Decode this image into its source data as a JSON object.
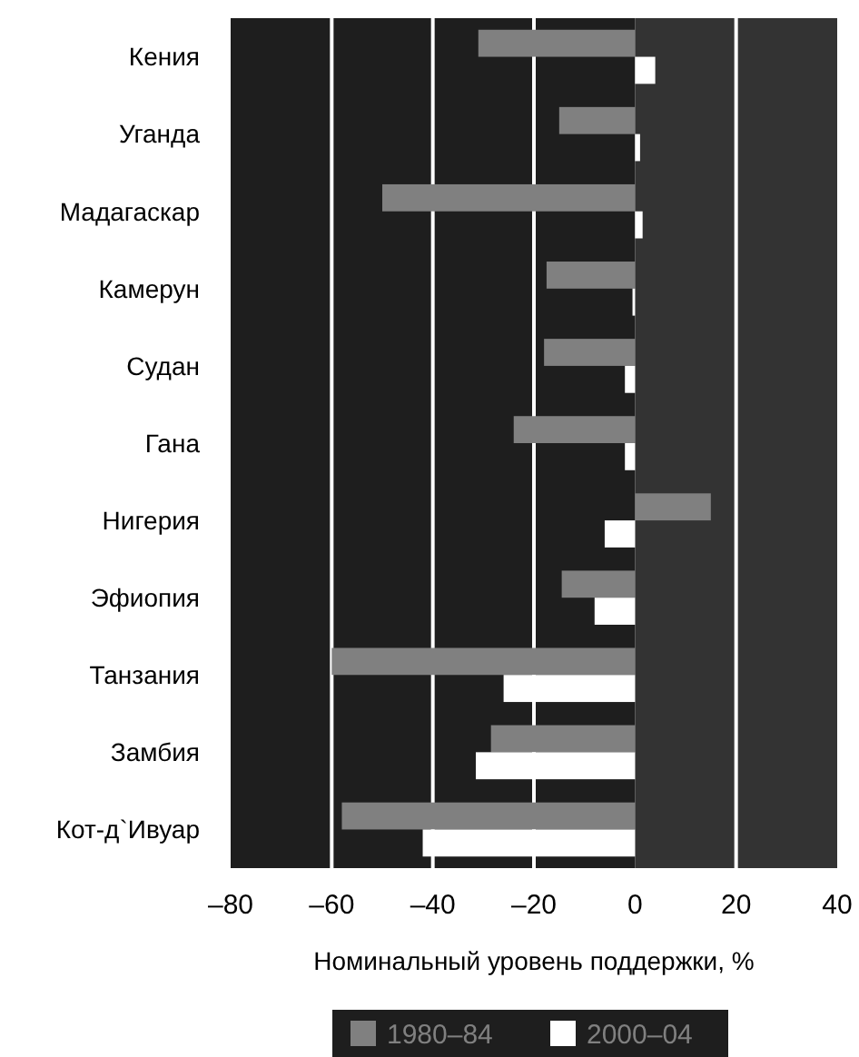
{
  "chart_data": {
    "type": "bar",
    "orientation": "horizontal",
    "xlabel": "Номинальный уровень поддержки, %",
    "categories": [
      "Кения",
      "Уганда",
      "Мадагаскар",
      "Камерун",
      "Судан",
      "Гана",
      "Нигерия",
      "Эфиопия",
      "Танзания",
      "Замбия",
      "Кот-д`Ивуар"
    ],
    "series": [
      {
        "name": "1980–84",
        "color": "#808080",
        "values": [
          -31,
          -15,
          -50,
          -17.5,
          -18,
          -24,
          15,
          -14.5,
          -60,
          -28.5,
          -58
        ]
      },
      {
        "name": "2000–04",
        "color": "#ffffff",
        "values": [
          4,
          1,
          1.5,
          -0.5,
          -2,
          -2,
          -6,
          -8,
          -26,
          -31.5,
          -42
        ]
      }
    ],
    "xlim": [
      -80,
      40
    ],
    "xticks": [
      {
        "value": -80,
        "label": "–80"
      },
      {
        "value": -60,
        "label": "–60"
      },
      {
        "value": -40,
        "label": "–40"
      },
      {
        "value": -20,
        "label": "–20"
      },
      0,
      20,
      40
    ],
    "bands": [
      {
        "axis": "x",
        "from": -80,
        "to": 0,
        "color": "#1e1e1e"
      },
      {
        "axis": "x",
        "from": 0,
        "to": 40,
        "color": "#333333"
      }
    ],
    "grid": "x",
    "legend": "bottom"
  }
}
